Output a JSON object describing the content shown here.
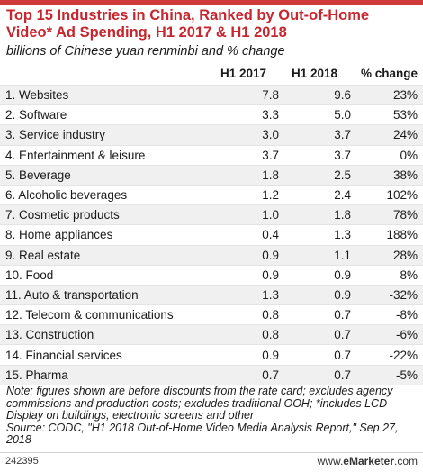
{
  "title": "Top 15 Industries in China, Ranked by Out-of-Home Video* Ad Spending, H1 2017 & H1 2018",
  "subtitle": "billions of Chinese yuan renminbi and % change",
  "columns": {
    "h1_2017": "H1 2017",
    "h1_2018": "H1 2018",
    "change": "% change"
  },
  "chart_data": {
    "type": "table",
    "title": "Top 15 Industries in China, Ranked by Out-of-Home Video* Ad Spending, H1 2017 & H1 2018",
    "subtitle": "billions of Chinese yuan renminbi and % change",
    "columns": [
      "H1 2017",
      "H1 2018",
      "% change"
    ],
    "rows": [
      {
        "label": "1. Websites",
        "h1_2017": "7.8",
        "h1_2018": "9.6",
        "change": "23%"
      },
      {
        "label": "2. Software",
        "h1_2017": "3.3",
        "h1_2018": "5.0",
        "change": "53%"
      },
      {
        "label": "3. Service industry",
        "h1_2017": "3.0",
        "h1_2018": "3.7",
        "change": "24%"
      },
      {
        "label": "4. Entertainment & leisure",
        "h1_2017": "3.7",
        "h1_2018": "3.7",
        "change": "0%"
      },
      {
        "label": "5. Beverage",
        "h1_2017": "1.8",
        "h1_2018": "2.5",
        "change": "38%"
      },
      {
        "label": "6. Alcoholic beverages",
        "h1_2017": "1.2",
        "h1_2018": "2.4",
        "change": "102%"
      },
      {
        "label": "7. Cosmetic products",
        "h1_2017": "1.0",
        "h1_2018": "1.8",
        "change": "78%"
      },
      {
        "label": "8. Home appliances",
        "h1_2017": "0.4",
        "h1_2018": "1.3",
        "change": "188%"
      },
      {
        "label": "9. Real estate",
        "h1_2017": "0.9",
        "h1_2018": "1.1",
        "change": "28%"
      },
      {
        "label": "10. Food",
        "h1_2017": "0.9",
        "h1_2018": "0.9",
        "change": "8%"
      },
      {
        "label": "11. Auto & transportation",
        "h1_2017": "1.3",
        "h1_2018": "0.9",
        "change": "-32%"
      },
      {
        "label": "12. Telecom & communications",
        "h1_2017": "0.8",
        "h1_2018": "0.7",
        "change": "-8%"
      },
      {
        "label": "13. Construction",
        "h1_2017": "0.8",
        "h1_2018": "0.7",
        "change": "-6%"
      },
      {
        "label": "14. Financial services",
        "h1_2017": "0.9",
        "h1_2018": "0.7",
        "change": "-22%"
      },
      {
        "label": "15. Pharma",
        "h1_2017": "0.7",
        "h1_2018": "0.7",
        "change": "-5%"
      }
    ]
  },
  "note": "Note: figures shown are before discounts from the rate card; excludes agency commissions and production costs; excludes traditional OOH; *includes LCD Display on buildings, electronic screens and other",
  "source": "Source: CODC, \"H1 2018 Out-of-Home Video Media Analysis Report,\" Sep 27, 2018",
  "footer": {
    "chart_id": "242395",
    "site_prefix": "www.",
    "site_brand": "eMarketer",
    "site_suffix": ".com"
  },
  "colors": {
    "title": "#c8262e",
    "top_rule": "#d13a3a",
    "stripe": "#f0f0f0"
  }
}
